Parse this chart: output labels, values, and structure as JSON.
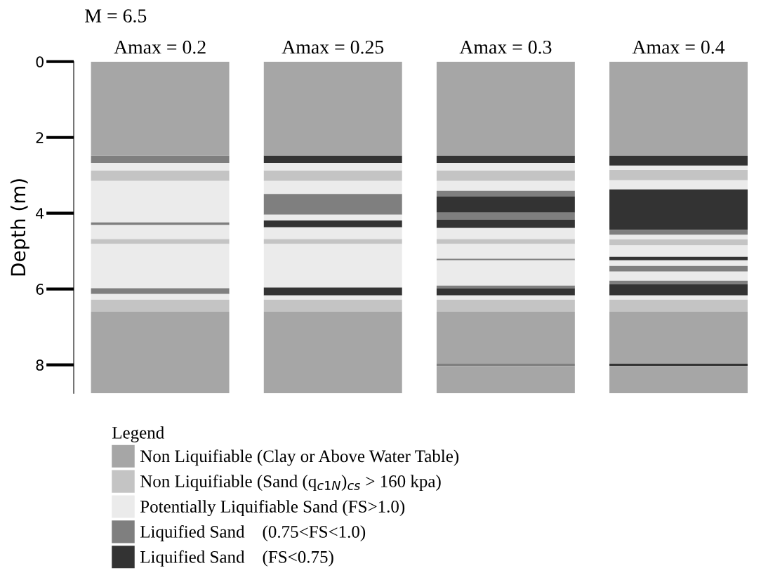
{
  "chart_data": {
    "type": "bar",
    "subtitle": "M = 6.5",
    "ylabel": "Depth (m)",
    "legend_title": "Legend",
    "legend": "bottom",
    "grid": false,
    "categories": [
      "Amax = 0.2",
      "Amax = 0.25",
      "Amax = 0.3",
      "Amax = 0.4"
    ],
    "ylim": [
      8.75,
      0
    ],
    "yticks": [
      0,
      2,
      4,
      6,
      8
    ],
    "series": [
      {
        "name": "Non Liquifiable (Clay or Above Water Table)",
        "color": "#a6a6a6",
        "base": [
          0,
          0,
          0,
          0
        ],
        "values": [
          2.48,
          2.48,
          2.48,
          2.48
        ]
      },
      {
        "name": "Non Liquifiable (Sand (q$_{c1N}$)$_{cs}$ > 160 kpa)",
        "color": "#c4c4c4",
        "base": [
          2.87,
          2.87,
          2.87,
          2.85
        ],
        "values": [
          0.28,
          0.28,
          0.28,
          0.28
        ]
      },
      {
        "name": "Potentially Liquifiable Sand (FS>1.0)",
        "color": "#ebebeb",
        "base": [
          2.67,
          2.67,
          2.67,
          2.74
        ],
        "values": [
          0.2,
          0.2,
          0.2,
          0.11
        ]
      },
      {
        "name": "Liquified Sand    (0.75<FS<1.0)",
        "color": "#7f7f7f",
        "base": [
          2.48,
          null,
          null,
          null
        ],
        "values": [
          0.19,
          null,
          null,
          null
        ]
      },
      {
        "name": "Liquified Sand    (FS<0.75)",
        "color": "#333333",
        "base": [
          null,
          2.48,
          2.48,
          2.48
        ],
        "values": [
          null,
          0.19,
          0.19,
          0.26
        ]
      },
      {
        "color": "#ebebeb",
        "base": [
          3.15,
          3.15,
          3.15,
          3.13
        ],
        "values": [
          1.09,
          0.34,
          0.26,
          0.24
        ]
      },
      {
        "color": "#7f7f7f",
        "base": [
          null,
          3.49,
          3.41,
          null
        ],
        "values": [
          null,
          0.55,
          0.15,
          null
        ]
      },
      {
        "color": "#333333",
        "base": [
          null,
          null,
          3.56,
          3.37
        ],
        "values": [
          null,
          null,
          0.42,
          1.07
        ]
      },
      {
        "color": "#ebebeb",
        "base": [
          null,
          4.04,
          null,
          null
        ],
        "values": [
          null,
          0.15,
          null,
          null
        ]
      },
      {
        "color": "#7f7f7f",
        "base": [
          4.24,
          null,
          3.98,
          4.44
        ],
        "values": [
          0.07,
          null,
          0.19,
          0.13
        ]
      },
      {
        "color": "#333333",
        "base": [
          null,
          4.19,
          4.17,
          null
        ],
        "values": [
          null,
          0.18,
          0.22,
          null
        ]
      },
      {
        "color": "#ebebeb",
        "base": [
          4.31,
          4.37,
          4.39,
          4.57
        ],
        "values": [
          0.37,
          0.31,
          0.29,
          0.12
        ]
      },
      {
        "color": "#c4c4c4",
        "base": [
          4.68,
          4.68,
          4.68,
          4.69
        ],
        "values": [
          0.13,
          0.13,
          0.13,
          0.16
        ]
      },
      {
        "color": "#ebebeb",
        "base": [
          4.81,
          4.81,
          4.81,
          4.85
        ],
        "values": [
          1.17,
          1.15,
          0.39,
          0.3
        ]
      },
      {
        "color": "#333333",
        "base": [
          null,
          null,
          null,
          5.15
        ],
        "values": [
          null,
          null,
          null,
          0.09
        ]
      },
      {
        "color": "#7f7f7f",
        "base": [
          null,
          null,
          5.2,
          null
        ],
        "values": [
          null,
          null,
          0.04,
          null
        ]
      },
      {
        "color": "#ebebeb",
        "base": [
          null,
          null,
          5.24,
          5.24
        ],
        "values": [
          null,
          null,
          0.67,
          0.15
        ]
      },
      {
        "color": "#7f7f7f",
        "base": [
          null,
          null,
          null,
          5.39
        ],
        "values": [
          null,
          null,
          null,
          0.15
        ]
      },
      {
        "color": "#ebebeb",
        "base": [
          null,
          null,
          null,
          5.54
        ],
        "values": [
          null,
          null,
          null,
          0.24
        ]
      },
      {
        "color": "#7f7f7f",
        "base": [
          5.98,
          null,
          5.91,
          5.78
        ],
        "values": [
          0.15,
          null,
          0.07,
          0.09
        ]
      },
      {
        "color": "#333333",
        "base": [
          null,
          5.96,
          5.98,
          5.87
        ],
        "values": [
          null,
          0.21,
          0.19,
          0.3
        ]
      },
      {
        "color": "#ebebeb",
        "base": [
          6.13,
          6.17,
          6.17,
          6.17
        ],
        "values": [
          0.15,
          0.11,
          0.11,
          0.11
        ]
      },
      {
        "color": "#c4c4c4",
        "base": [
          6.28,
          6.28,
          6.28,
          6.28
        ],
        "values": [
          0.32,
          0.32,
          0.32,
          0.32
        ]
      },
      {
        "color": "#a6a6a6",
        "base": [
          6.6,
          6.6,
          6.6,
          6.6
        ],
        "values": [
          1.37,
          1.37,
          1.37,
          1.37
        ]
      },
      {
        "color": "#7f7f7f",
        "base": [
          null,
          null,
          7.97,
          null
        ],
        "values": [
          null,
          null,
          0.06,
          null
        ]
      },
      {
        "color": "#333333",
        "base": [
          null,
          null,
          null,
          7.97
        ],
        "values": [
          null,
          null,
          null,
          0.06
        ]
      },
      {
        "color": "#a6a6a6",
        "base": [
          7.97,
          7.97,
          8.03,
          8.03
        ],
        "values": [
          0.78,
          0.78,
          0.72,
          0.72
        ]
      }
    ]
  }
}
